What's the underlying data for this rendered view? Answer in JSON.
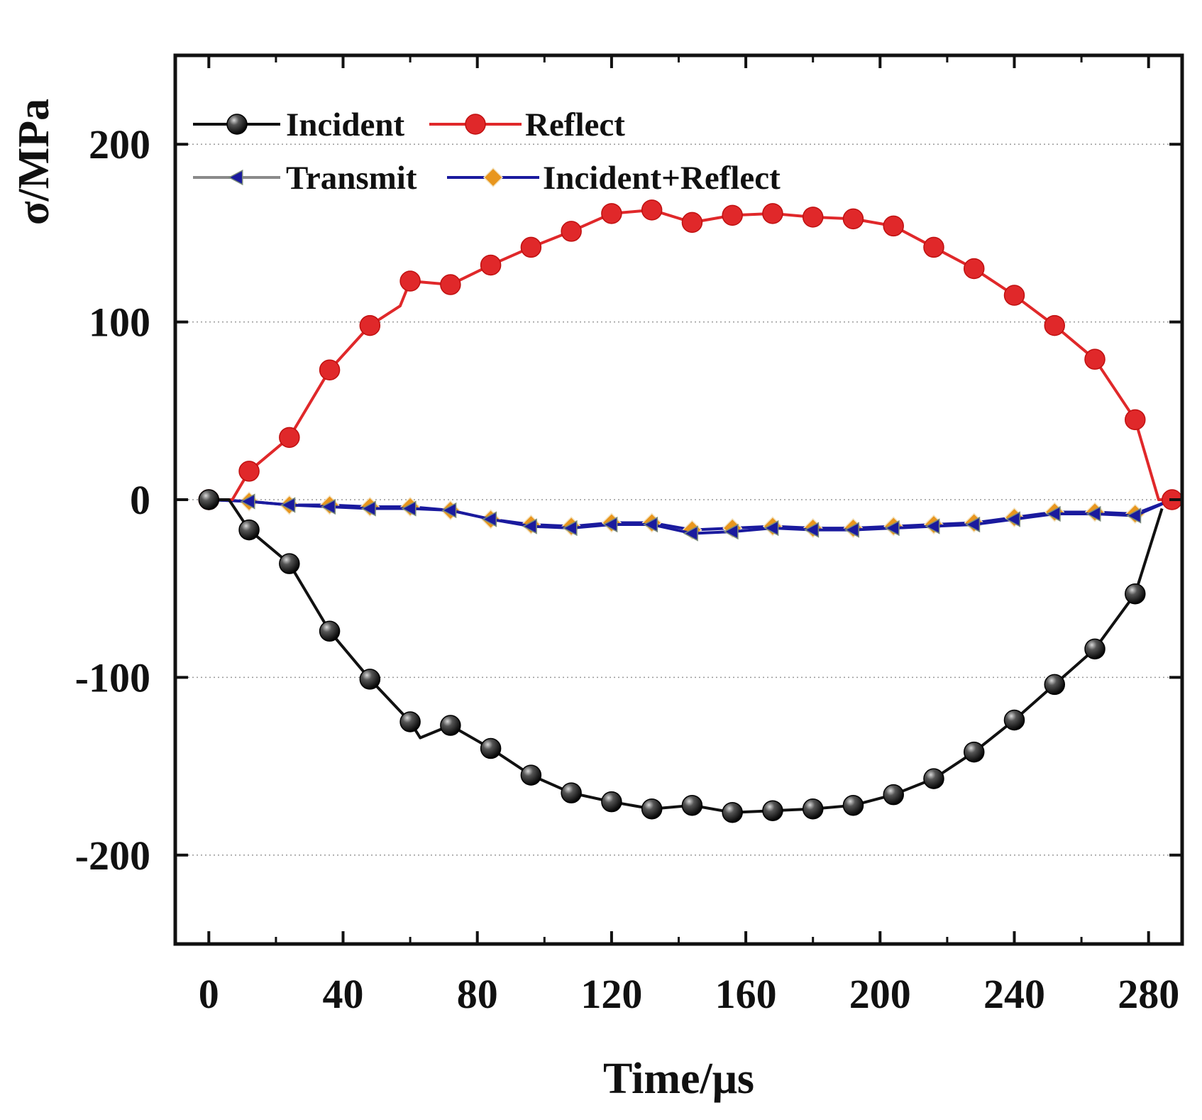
{
  "chart_data": {
    "type": "line",
    "title": "",
    "xlabel": "Time/μs",
    "ylabel": "σ/MPa",
    "xlim": [
      -10,
      290
    ],
    "ylim": [
      -250,
      250
    ],
    "xticks": [
      0,
      40,
      80,
      120,
      160,
      200,
      240,
      280
    ],
    "yticks": [
      -200,
      -100,
      0,
      100,
      200
    ],
    "grid": "horizontal dotted at y ticks",
    "legend_position": "top-left",
    "series": [
      {
        "name": "Incident",
        "color": "#111111",
        "marker": "sphere",
        "x": [
          0,
          6,
          12,
          24,
          36,
          48,
          60,
          63,
          72,
          84,
          96,
          108,
          120,
          132,
          144,
          156,
          168,
          180,
          192,
          204,
          216,
          228,
          240,
          252,
          264,
          276,
          284
        ],
        "y": [
          0,
          0,
          -17,
          -36,
          -74,
          -101,
          -125,
          -134,
          -127,
          -140,
          -155,
          -165,
          -170,
          -174,
          -172,
          -176,
          -175,
          -174,
          -172,
          -166,
          -157,
          -142,
          -124,
          -104,
          -84,
          -53,
          -5
        ]
      },
      {
        "name": "Reflect",
        "color": "#e0282a",
        "marker": "circle",
        "x": [
          0,
          7,
          12,
          24,
          36,
          48,
          57,
          60,
          72,
          84,
          96,
          108,
          120,
          132,
          144,
          156,
          168,
          180,
          192,
          204,
          216,
          228,
          240,
          252,
          264,
          276,
          283,
          287
        ],
        "y": [
          0,
          0,
          16,
          35,
          73,
          98,
          109,
          123,
          121,
          132,
          142,
          151,
          161,
          163,
          156,
          160,
          161,
          159,
          158,
          154,
          142,
          130,
          115,
          98,
          79,
          45,
          0,
          0
        ]
      },
      {
        "name": "Transmit",
        "color": "#1a1a9e",
        "marker": "triangle-left",
        "x": [
          0,
          12,
          24,
          36,
          48,
          60,
          72,
          84,
          96,
          108,
          120,
          132,
          144,
          156,
          168,
          180,
          192,
          204,
          216,
          228,
          240,
          252,
          264,
          276,
          287
        ],
        "y": [
          0,
          -1,
          -3,
          -4,
          -5,
          -5,
          -6,
          -11,
          -15,
          -16,
          -14,
          -14,
          -19,
          -18,
          -16,
          -17,
          -17,
          -16,
          -15,
          -14,
          -11,
          -8,
          -8,
          -9,
          0
        ]
      },
      {
        "name": "Incident+Reflect",
        "color": "#e8961e",
        "marker": "diamond",
        "x": [
          0,
          12,
          24,
          36,
          48,
          60,
          72,
          84,
          96,
          108,
          120,
          132,
          144,
          156,
          168,
          180,
          192,
          204,
          216,
          228,
          240,
          252,
          264,
          276,
          287
        ],
        "y": [
          0,
          -1,
          -3,
          -3,
          -4,
          -4,
          -6,
          -11,
          -14,
          -15,
          -13,
          -13,
          -17,
          -16,
          -15,
          -16,
          -16,
          -15,
          -14,
          -13,
          -10,
          -7,
          -7,
          -8,
          0
        ]
      }
    ]
  }
}
